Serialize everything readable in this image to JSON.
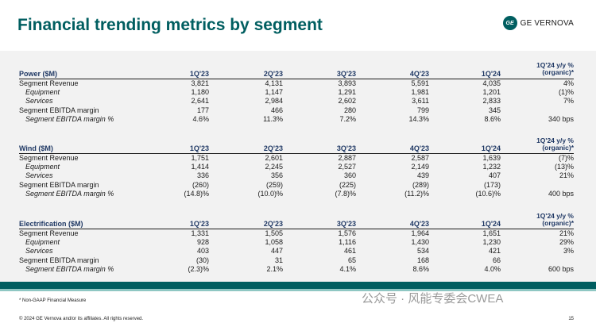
{
  "title": "Financial trending metrics by segment",
  "logo": {
    "mark_text": "GE",
    "word": "GE VERNOVA"
  },
  "columns": [
    "1Q'23",
    "2Q'23",
    "3Q'23",
    "4Q'23",
    "1Q'24"
  ],
  "yy_header": [
    "1Q'24 y/y %",
    "(organic)*"
  ],
  "sections": [
    {
      "name": "Power ($M)",
      "rows": [
        {
          "label": "Segment Revenue",
          "values": [
            "3,821",
            "4,131",
            "3,893",
            "5,591",
            "4,035"
          ],
          "yy": "4%"
        },
        {
          "label": "Equipment",
          "values": [
            "1,180",
            "1,147",
            "1,291",
            "1,981",
            "1,201"
          ],
          "yy": "(1)%"
        },
        {
          "label": "Services",
          "values": [
            "2,641",
            "2,984",
            "2,602",
            "3,611",
            "2,833"
          ],
          "yy": "7%"
        },
        {
          "label": "Segment EBITDA margin",
          "values": [
            "177",
            "466",
            "280",
            "799",
            "345"
          ],
          "yy": ""
        },
        {
          "label": "Segment EBITDA margin %",
          "values": [
            "4.6%",
            "11.3%",
            "7.2%",
            "14.3%",
            "8.6%"
          ],
          "yy": "340 bps"
        }
      ]
    },
    {
      "name": "Wind ($M)",
      "rows": [
        {
          "label": "Segment Revenue",
          "values": [
            "1,751",
            "2,601",
            "2,887",
            "2,587",
            "1,639"
          ],
          "yy": "(7)%"
        },
        {
          "label": "Equipment",
          "values": [
            "1,414",
            "2,245",
            "2,527",
            "2,149",
            "1,232"
          ],
          "yy": "(13)%"
        },
        {
          "label": "Services",
          "values": [
            "336",
            "356",
            "360",
            "439",
            "407"
          ],
          "yy": "21%"
        },
        {
          "label": "Segment EBITDA margin",
          "values": [
            "(260)",
            "(259)",
            "(225)",
            "(289)",
            "(173)"
          ],
          "yy": ""
        },
        {
          "label": "Segment EBITDA margin %",
          "values": [
            "(14.8)%",
            "(10.0)%",
            "(7.8)%",
            "(11.2)%",
            "(10.6)%"
          ],
          "yy": "400 bps"
        }
      ]
    },
    {
      "name": "Electrification ($M)",
      "rows": [
        {
          "label": "Segment Revenue",
          "values": [
            "1,331",
            "1,505",
            "1,576",
            "1,964",
            "1,651"
          ],
          "yy": "21%"
        },
        {
          "label": "Equipment",
          "values": [
            "928",
            "1,058",
            "1,116",
            "1,430",
            "1,230"
          ],
          "yy": "29%"
        },
        {
          "label": "Services",
          "values": [
            "403",
            "447",
            "461",
            "534",
            "421"
          ],
          "yy": "3%"
        },
        {
          "label": "Segment EBITDA margin",
          "values": [
            "(30)",
            "31",
            "65",
            "168",
            "66"
          ],
          "yy": ""
        },
        {
          "label": "Segment EBITDA margin %",
          "values": [
            "(2.3)%",
            "2.1%",
            "4.1%",
            "8.6%",
            "4.0%"
          ],
          "yy": "600 bps"
        }
      ]
    }
  ],
  "footnote": "* Non-GAAP Financial Measure",
  "copyright": "© 2024 GE Vernova and/or its affiliates. All rights reserved.",
  "page_number": "15",
  "watermark": "公众号 · 风能专委会CWEA"
}
